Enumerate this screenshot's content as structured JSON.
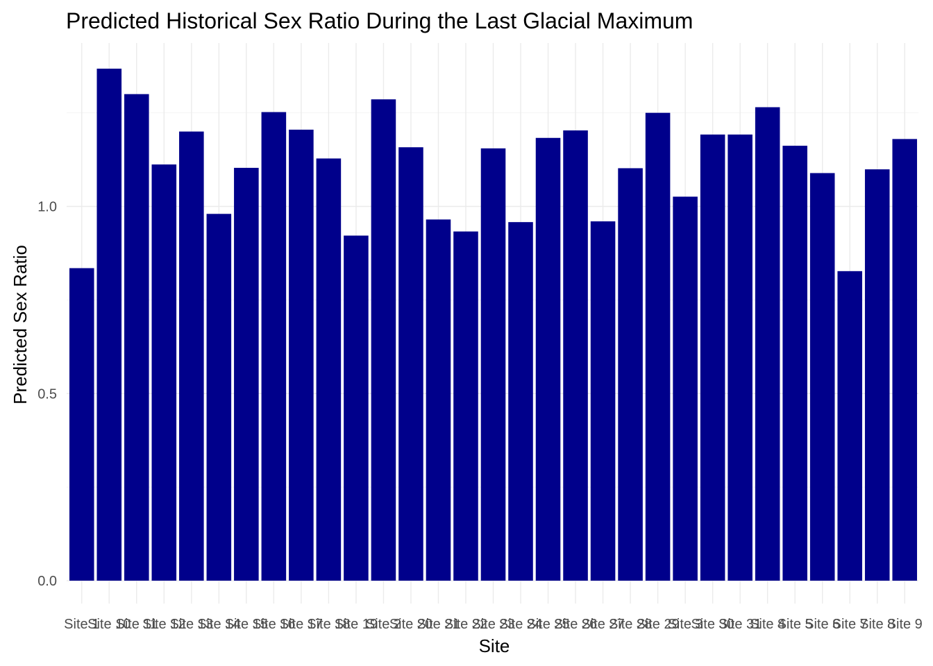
{
  "chart_data": {
    "type": "bar",
    "title": "Predicted Historical Sex Ratio During the Last Glacial Maximum",
    "xlabel": "Site",
    "ylabel": "Predicted Sex Ratio",
    "ylim": [
      0,
      1.38
    ],
    "yticks": [
      0.0,
      0.5,
      1.0
    ],
    "ytick_labels": [
      "0.0",
      "0.5",
      "1.0"
    ],
    "grid": true,
    "bar_color": "#00008B",
    "categories": [
      "Site 1",
      "Site 10",
      "Site 11",
      "Site 12",
      "Site 13",
      "Site 14",
      "Site 15",
      "Site 16",
      "Site 17",
      "Site 18",
      "Site 19",
      "Site 2",
      "Site 20",
      "Site 21",
      "Site 22",
      "Site 23",
      "Site 24",
      "Site 25",
      "Site 26",
      "Site 27",
      "Site 28",
      "Site 29",
      "Site 3",
      "Site 30",
      "Site 31",
      "Site 4",
      "Site 5",
      "Site 6",
      "Site 7",
      "Site 8",
      "Site 9"
    ],
    "values": [
      0.835,
      1.368,
      1.3,
      1.112,
      1.2,
      0.98,
      1.103,
      1.252,
      1.205,
      1.128,
      0.922,
      1.286,
      1.158,
      0.965,
      0.933,
      1.155,
      0.958,
      1.183,
      1.203,
      0.96,
      1.102,
      1.25,
      1.026,
      1.192,
      1.192,
      1.265,
      1.162,
      1.089,
      0.827,
      1.099,
      1.18
    ]
  }
}
